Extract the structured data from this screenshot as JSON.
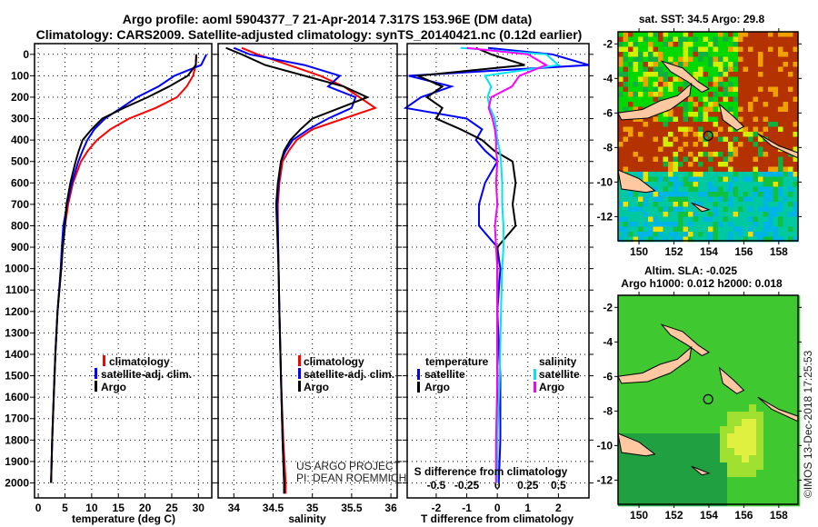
{
  "title": {
    "line1": "Argo profile: aoml 5904377_7 21-Apr-2014 7.317S 153.96E (DM data)",
    "line2": "Climatology: CARS2009. Satellite-adjusted climatology: synTS_20140421.nc (0.12d earlier)"
  },
  "credit": {
    "line1": "US ARGO PROJECT",
    "line2": "PI: DEAN ROEMMICH"
  },
  "footer_vertical": "©IMOS 13-Dec-2018 17:25:53",
  "colors": {
    "climatology": "#ff0000",
    "satellite": "#0000ff",
    "argo": "#000000",
    "sal_satellite": "#00e5ee",
    "sal_argo": "#ff00ff",
    "land": "#ffc8a0"
  },
  "chart_data": [
    {
      "type": "line",
      "xlabel": "temperature (deg C)",
      "ylabel": "",
      "xlim": [
        -0.7,
        32.5
      ],
      "ylim": [
        2070,
        -50
      ],
      "xticks": [
        "0",
        "5",
        "10",
        "15",
        "20",
        "25",
        "30"
      ],
      "xtick_values": [
        0,
        5,
        10,
        15,
        20,
        25,
        30
      ],
      "yticks": [
        "0",
        "100",
        "200",
        "300",
        "400",
        "500",
        "600",
        "700",
        "800",
        "900",
        "1000",
        "1100",
        "1200",
        "1300",
        "1400",
        "1500",
        "1600",
        "1700",
        "1800",
        "1900",
        "2000"
      ],
      "legend": [
        "climatology",
        "satellite-adj. clim.",
        "Argo"
      ],
      "depth": [
        0,
        50,
        100,
        150,
        200,
        250,
        300,
        350,
        400,
        450,
        500,
        600,
        700,
        800,
        900,
        1000,
        1200,
        1400,
        1600,
        1800,
        2000
      ],
      "series": [
        {
          "name": "climatology",
          "values": [
            29.6,
            29.5,
            29.0,
            27.8,
            26.0,
            22.0,
            17.0,
            13.5,
            11.0,
            9.3,
            8.0,
            6.5,
            5.6,
            5.0,
            4.6,
            4.3,
            3.6,
            3.2,
            2.9,
            2.6,
            2.4
          ]
        },
        {
          "name": "satellite-adj. clim.",
          "values": [
            31.5,
            30.5,
            25.5,
            22.5,
            18.5,
            15.5,
            12.5,
            10.5,
            9.2,
            8.3,
            7.5,
            6.3,
            5.4,
            4.7,
            4.4,
            4.2,
            3.6,
            3.2,
            2.9,
            2.6,
            2.4
          ]
        },
        {
          "name": "Argo",
          "values": [
            29.6,
            29.5,
            28.0,
            24.5,
            20.5,
            16.0,
            12.0,
            10.0,
            8.3,
            7.6,
            7.0,
            6.0,
            5.3,
            5.0,
            4.6,
            4.3,
            3.6,
            3.2,
            2.9,
            2.6,
            2.4
          ]
        }
      ]
    },
    {
      "type": "line",
      "xlabel": "salinity",
      "xlim": [
        33.8,
        36.08
      ],
      "ylim": [
        2070,
        -50
      ],
      "xticks": [
        "34",
        "34.5",
        "35",
        "35.5",
        "36"
      ],
      "xtick_values": [
        34,
        34.5,
        35,
        35.5,
        36
      ],
      "legend": [
        "climatology",
        "satellite-adj. clim.",
        "Argo"
      ],
      "depth": [
        -30,
        0,
        50,
        100,
        150,
        200,
        250,
        300,
        350,
        400,
        450,
        500,
        600,
        700,
        800,
        1000,
        1200,
        1500,
        1800,
        2000,
        2050
      ],
      "series": [
        {
          "name": "climatology",
          "values": [
            34.1,
            34.3,
            34.7,
            35.1,
            35.4,
            35.6,
            35.8,
            35.4,
            35.0,
            34.8,
            34.7,
            34.62,
            34.58,
            34.56,
            34.56,
            34.57,
            34.58,
            34.6,
            34.63,
            34.66,
            34.66
          ]
        },
        {
          "name": "satellite-adj. clim.",
          "values": [
            34.0,
            34.2,
            34.9,
            35.35,
            35.2,
            35.55,
            35.5,
            35.2,
            34.95,
            34.75,
            34.66,
            34.6,
            34.57,
            34.55,
            34.56,
            34.57,
            34.58,
            34.6,
            34.62,
            34.64,
            34.64
          ]
        },
        {
          "name": "Argo",
          "values": [
            33.9,
            34.1,
            34.4,
            34.9,
            35.4,
            35.7,
            35.35,
            35.0,
            34.85,
            34.72,
            34.64,
            34.6,
            34.56,
            34.54,
            34.55,
            34.57,
            34.58,
            34.6,
            34.62,
            34.64,
            34.64
          ]
        }
      ]
    },
    {
      "type": "line",
      "xlabel": "T difference from climatology",
      "x2label": "S difference from climatology",
      "xlim": [
        -2.95,
        3.0
      ],
      "ylim": [
        2070,
        -50
      ],
      "xticks": [
        "-2",
        "-1",
        "0",
        "1",
        "2"
      ],
      "xtick_values": [
        -2,
        -1,
        0,
        1,
        2
      ],
      "x2ticks": [
        "-0.5",
        "-0.25",
        "0",
        "0.25",
        "0.5"
      ],
      "x2tick_values": [
        -0.5,
        -0.25,
        0,
        0.25,
        0.5
      ],
      "legend_temperature": {
        "title": "temperature",
        "items": [
          "satellite",
          "Argo"
        ]
      },
      "legend_salinity": {
        "title": "salinity",
        "items": [
          "satellite",
          "Argo"
        ]
      },
      "depth": [
        -30,
        0,
        50,
        100,
        150,
        200,
        250,
        300,
        350,
        400,
        450,
        500,
        600,
        700,
        800,
        900,
        1000,
        1200,
        1500,
        1800,
        2000
      ],
      "series": [
        {
          "name": "temperature satellite",
          "unit": "T",
          "values": [
            -0.3,
            1.8,
            3.0,
            -2.9,
            -1.5,
            -2.5,
            -3.0,
            -1.0,
            -0.5,
            -0.7,
            -0.4,
            0.0,
            -0.4,
            -0.6,
            -0.6,
            0.0,
            0.1,
            0.0,
            0.1,
            0.1,
            0.05
          ]
        },
        {
          "name": "temperature Argo",
          "unit": "T",
          "values": [
            -0.7,
            -0.2,
            0.9,
            -2.6,
            -1.8,
            -2.3,
            -1.8,
            -2.0,
            -1.2,
            -0.5,
            -0.1,
            0.5,
            0.6,
            0.5,
            0.6,
            0.0,
            0.0,
            0.0,
            0.0,
            0.0,
            0.0
          ]
        },
        {
          "name": "salinity satellite",
          "unit": "S",
          "values": [
            -0.3,
            0.4,
            0.5,
            -0.1,
            -0.05,
            -0.08,
            -0.06,
            -0.02,
            -0.01,
            0.0,
            0.02,
            0.03,
            0.04,
            0.04,
            0.05,
            0.05,
            0.04,
            0.03,
            0.02,
            0.0,
            0.0
          ]
        },
        {
          "name": "salinity Argo",
          "unit": "S",
          "values": [
            -0.25,
            0.25,
            0.4,
            0.18,
            0.12,
            -0.05,
            -0.07,
            -0.04,
            -0.02,
            -0.01,
            -0.01,
            0.0,
            -0.01,
            0.0,
            -0.02,
            -0.01,
            0.0,
            0.0,
            0.0,
            -0.01,
            -0.01
          ]
        }
      ]
    },
    {
      "type": "heatmap",
      "title": "sat. SST: 34.5 Argo: 29.8",
      "xlim": [
        148.8,
        159.1
      ],
      "ylim": [
        -13.4,
        -1.3
      ],
      "xticks": [
        "150",
        "152",
        "154",
        "156",
        "158"
      ],
      "xtick_values": [
        150,
        152,
        154,
        156,
        158
      ],
      "yticks": [
        "-2",
        "-4",
        "-6",
        "-8",
        "-10",
        "-12"
      ],
      "ytick_values": [
        -2,
        -4,
        -6,
        -8,
        -10,
        -12
      ],
      "marker": {
        "lon": 153.96,
        "lat": -7.317
      }
    },
    {
      "type": "heatmap",
      "title": "Altim. SLA: -0.025",
      "subtitle": "Argo h1000: 0.012 h2000: 0.018",
      "xlim": [
        148.8,
        159.1
      ],
      "ylim": [
        -13.4,
        -1.3
      ],
      "xticks": [
        "150",
        "152",
        "154",
        "156",
        "158"
      ],
      "xtick_values": [
        150,
        152,
        154,
        156,
        158
      ],
      "yticks": [
        "-2",
        "-4",
        "-6",
        "-8",
        "-10",
        "-12"
      ],
      "ytick_values": [
        -2,
        -4,
        -6,
        -8,
        -10,
        -12
      ],
      "marker": {
        "lon": 153.96,
        "lat": -7.317
      }
    }
  ]
}
